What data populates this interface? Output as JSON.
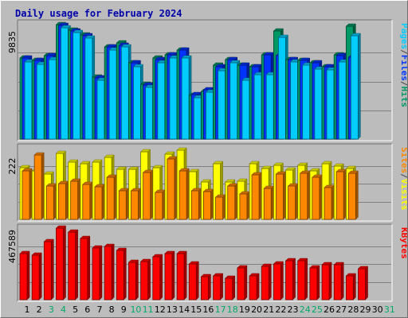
{
  "chart_data": {
    "type": "bar",
    "title": "Daily usage for February 2024",
    "days": [
      1,
      2,
      3,
      4,
      5,
      6,
      7,
      8,
      9,
      10,
      11,
      12,
      13,
      14,
      15,
      16,
      17,
      18,
      19,
      20,
      21,
      22,
      23,
      24,
      25,
      26,
      27,
      28,
      29,
      30,
      31
    ],
    "weekend_days": [
      3,
      4,
      10,
      11,
      17,
      18,
      24,
      25,
      31
    ],
    "panels": [
      {
        "id": "hits-files-pages",
        "max_label": "9835",
        "ymax": 9835,
        "axis_labels": [
          "Pages",
          "/",
          "Files",
          "/",
          "Hits"
        ],
        "axis_colors": [
          "#00ccff",
          "#444444",
          "#0033ff",
          "#444444",
          "#009966"
        ],
        "series": [
          {
            "name": "Hits",
            "color": "#009966",
            "values": [
              6900,
              6700,
              7100,
              9800,
              9300,
              8900,
              5300,
              7900,
              8200,
              6500,
              4700,
              6900,
              7200,
              7600,
              3700,
              4100,
              6300,
              6800,
              6300,
              6200,
              7200,
              9200,
              6800,
              6700,
              6500,
              6200,
              7200,
              9600,
              null,
              null,
              null
            ]
          },
          {
            "name": "Files",
            "color": "#0033ff",
            "values": [
              6900,
              6700,
              7100,
              9700,
              9200,
              8800,
              5200,
              7900,
              8000,
              6500,
              4600,
              6800,
              7200,
              7600,
              3800,
              4200,
              6200,
              6800,
              6300,
              6200,
              7200,
              7100,
              6800,
              6700,
              6500,
              6200,
              7100,
              7000,
              null,
              null,
              null
            ]
          },
          {
            "name": "Pages",
            "color": "#00ccff",
            "values": [
              6600,
              6400,
              6800,
              9500,
              9100,
              8600,
              5000,
              7600,
              7900,
              6200,
              4400,
              6500,
              6900,
              6900,
              3500,
              4000,
              5800,
              6500,
              5000,
              5500,
              5500,
              8700,
              6600,
              6300,
              6000,
              5900,
              6600,
              8800,
              null,
              null,
              null
            ]
          }
        ]
      },
      {
        "id": "visits-sites",
        "max_label": "222",
        "ymax": 222,
        "axis_labels": [
          "Sites",
          "/",
          "Visits"
        ],
        "axis_colors": [
          "#ff8800",
          "#444444",
          "#ffff00"
        ],
        "series": [
          {
            "name": "Visits",
            "color": "#ffff00",
            "values": [
              160,
              150,
              140,
              205,
              178,
              172,
              178,
              192,
              155,
              155,
              210,
              160,
              202,
              215,
              148,
              117,
              173,
              115,
              118,
              173,
              158,
              167,
              153,
              167,
              150,
              173,
              166,
              158,
              null,
              null,
              null
            ]
          },
          {
            "name": "Sites",
            "color": "#ff8800",
            "values": [
              150,
              200,
              103,
              112,
              118,
              108,
              102,
              130,
              88,
              90,
              145,
              83,
              188,
              150,
              90,
              87,
              70,
              103,
              80,
              138,
              97,
              140,
              103,
              142,
              130,
              98,
              148,
              143,
              null,
              null,
              null
            ]
          }
        ]
      },
      {
        "id": "kbytes",
        "max_label": "467589",
        "ymax": 467589,
        "axis_labels": [
          "KBytes"
        ],
        "axis_colors": [
          "#ff0000"
        ],
        "series": [
          {
            "name": "KBytes",
            "color": "#ff0000",
            "values": [
              300000,
              290000,
              380000,
              467000,
              440000,
              400000,
              340000,
              350000,
              320000,
              245000,
              250000,
              280000,
              300000,
              300000,
              235000,
              150000,
              155000,
              140000,
              210000,
              155000,
              220000,
              233000,
              255000,
              255000,
              210000,
              228000,
              228000,
              155000,
              203000,
              null,
              null
            ]
          }
        ]
      }
    ]
  }
}
